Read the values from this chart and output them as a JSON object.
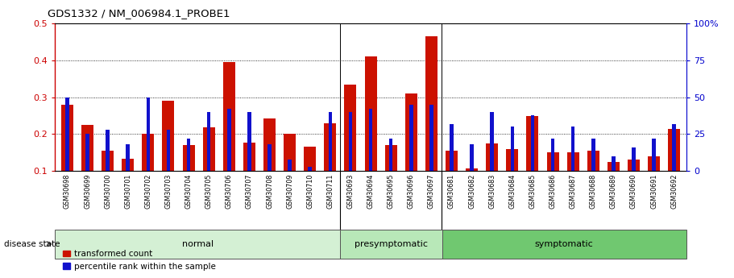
{
  "title": "GDS1332 / NM_006984.1_PROBE1",
  "samples": [
    "GSM30698",
    "GSM30699",
    "GSM30700",
    "GSM30701",
    "GSM30702",
    "GSM30703",
    "GSM30704",
    "GSM30705",
    "GSM30706",
    "GSM30707",
    "GSM30708",
    "GSM30709",
    "GSM30710",
    "GSM30711",
    "GSM30693",
    "GSM30694",
    "GSM30695",
    "GSM30696",
    "GSM30697",
    "GSM30681",
    "GSM30682",
    "GSM30683",
    "GSM30684",
    "GSM30685",
    "GSM30686",
    "GSM30687",
    "GSM30688",
    "GSM30689",
    "GSM30690",
    "GSM30691",
    "GSM30692"
  ],
  "red_values": [
    0.28,
    0.225,
    0.155,
    0.134,
    0.2,
    0.29,
    0.17,
    0.218,
    0.395,
    0.178,
    0.242,
    0.2,
    0.165,
    0.23,
    0.335,
    0.41,
    0.17,
    0.31,
    0.465,
    0.155,
    0.107,
    0.175,
    0.16,
    0.25,
    0.15,
    0.15,
    0.155,
    0.125,
    0.13,
    0.14,
    0.215
  ],
  "blue_pct": [
    50,
    25,
    28,
    18,
    50,
    28,
    22,
    40,
    42,
    40,
    18,
    8,
    3,
    40,
    40,
    42,
    22,
    45,
    45,
    32,
    18,
    40,
    30,
    38,
    22,
    30,
    22,
    10,
    16,
    22,
    32
  ],
  "groups": [
    {
      "label": "normal",
      "start": 0,
      "end": 14,
      "color": "#d4f0d4"
    },
    {
      "label": "presymptomatic",
      "start": 14,
      "end": 19,
      "color": "#b8e8b8"
    },
    {
      "label": "symptomatic",
      "start": 19,
      "end": 31,
      "color": "#70c870"
    }
  ],
  "ylim_left": [
    0.1,
    0.5
  ],
  "ylim_right": [
    0,
    100
  ],
  "yticks_left": [
    0.1,
    0.2,
    0.3,
    0.4,
    0.5
  ],
  "yticks_right": [
    0,
    25,
    50,
    75,
    100
  ],
  "left_color": "#cc0000",
  "right_color": "#0000cc",
  "bar_color_red": "#cc1100",
  "bar_color_blue": "#1111cc",
  "disease_state_label": "disease state",
  "legend_items": [
    "transformed count",
    "percentile rank within the sample"
  ]
}
